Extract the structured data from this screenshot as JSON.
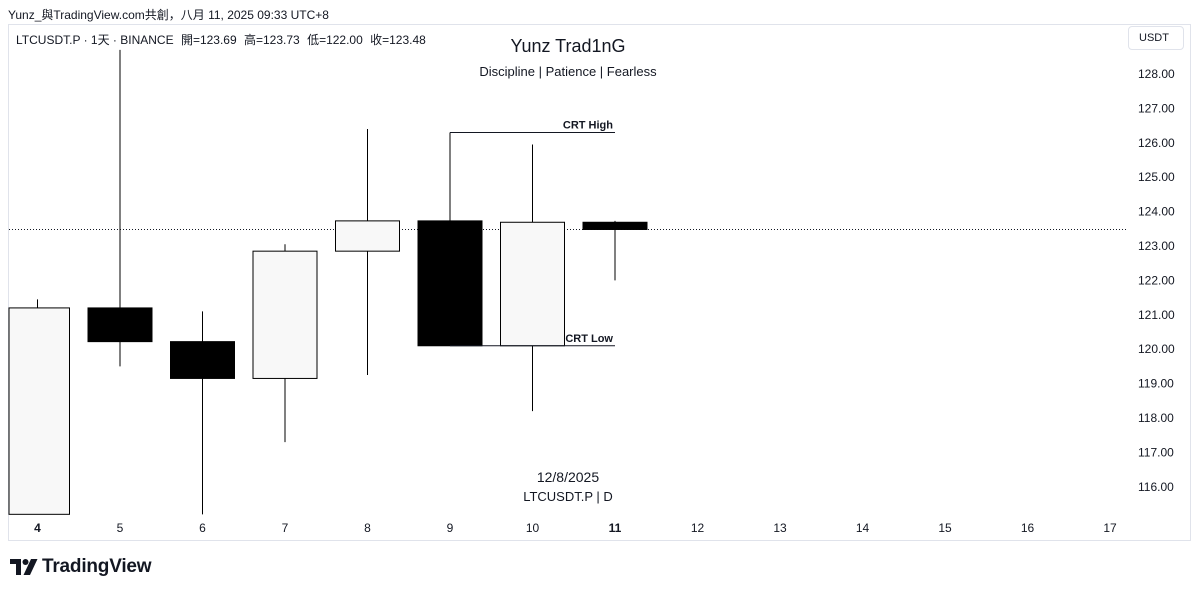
{
  "header": {
    "text": "Yunz_與TradingView.com共創，八月 11, 2025 09:33 UTC+8"
  },
  "symbol_info": {
    "symbol": "LTCUSDT.P · 1天 · BINANCE",
    "open": "開=123.69",
    "high": "高=123.73",
    "low": "低=122.00",
    "close": "收=123.48"
  },
  "price_axis": {
    "unit_label": "USDT"
  },
  "watermark": {
    "date": "12/8/2025",
    "symbol": "LTCUSDT.P | D"
  },
  "brand": {
    "name": "TradingView"
  },
  "colors": {
    "bear_body": "#000000",
    "bull_body": "#f8f8f8",
    "wick": "#000000",
    "axis_text": "#131722",
    "current_price_line": "#131722"
  },
  "chart_data": {
    "type": "candlestick",
    "title": "Yunz Trad1nG",
    "subtitle": "Discipline | Patience | Fearless",
    "x_axis_labels": [
      "4",
      "5",
      "6",
      "7",
      "8",
      "9",
      "10",
      "11",
      "12",
      "13",
      "14",
      "15",
      "16",
      "17"
    ],
    "x_axis_bold": [
      "4",
      "11"
    ],
    "y_axis_ticks": [
      128,
      127,
      126,
      125,
      124,
      123,
      122,
      121,
      120,
      119,
      118,
      117,
      116
    ],
    "ylim": [
      115.2,
      128.7
    ],
    "candles": [
      {
        "x": "4",
        "open": 115.2,
        "high": 121.45,
        "low": 115.2,
        "close": 121.2
      },
      {
        "x": "5",
        "open": 121.2,
        "high": 128.7,
        "low": 119.5,
        "close": 120.22
      },
      {
        "x": "6",
        "open": 120.22,
        "high": 121.1,
        "low": 115.2,
        "close": 119.15
      },
      {
        "x": "7",
        "open": 119.15,
        "high": 123.05,
        "low": 117.3,
        "close": 122.85
      },
      {
        "x": "8",
        "open": 122.85,
        "high": 126.4,
        "low": 119.25,
        "close": 123.73
      },
      {
        "x": "9",
        "open": 123.73,
        "high": 126.3,
        "low": 120.1,
        "close": 120.1
      },
      {
        "x": "10",
        "open": 120.1,
        "high": 125.95,
        "low": 118.2,
        "close": 123.69
      },
      {
        "x": "11",
        "open": 123.69,
        "high": 123.73,
        "low": 122.0,
        "close": 123.48
      }
    ],
    "current_price": 123.48,
    "annotations": [
      {
        "label": "CRT High",
        "price": 126.3,
        "from_x": "9",
        "to_x": "11"
      },
      {
        "label": "CRT Low",
        "price": 120.1,
        "from_x": "9",
        "to_x": "11"
      }
    ]
  }
}
